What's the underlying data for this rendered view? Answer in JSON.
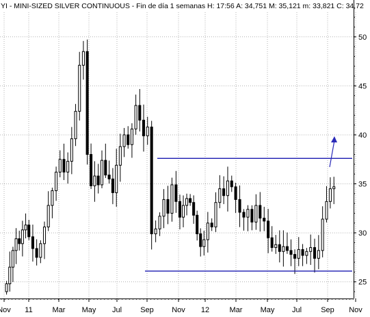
{
  "header": {
    "title": "YI - MINI-SIZED SILVER CONTINUOUS - Fin de día 1 semanas H: 17:56 A: 34,751 M: 35,121 m: 33,821 C: 34,72"
  },
  "colors": {
    "candle": "#000000",
    "trendline": "#1a1ab0",
    "arrow": "#2a2ab8",
    "grid": "#b0b0b0",
    "background": "#ffffff"
  },
  "chart_data": {
    "type": "candlestick",
    "title": "YI - MINI-SIZED SILVER CONTINUOUS - Fin de día 1 semanas H: 17:56 A: 34,751 M: 35,121 m: 33,821 C: 34,72",
    "ylim": [
      23.3,
      52.5
    ],
    "y_ticks": [
      "50",
      "45",
      "40",
      "35",
      "30",
      "25"
    ],
    "y_tick_values": [
      50,
      45,
      40,
      35,
      30,
      25
    ],
    "x_tick_labels": [
      "Nov",
      "11",
      "Mar",
      "May",
      "Jul",
      "Sep",
      "Nov",
      "12",
      "Mar",
      "May",
      "Jul",
      "Sep",
      "Nov"
    ],
    "x_tick_dates": [
      "2010-11",
      "2011-01",
      "2011-03",
      "2011-05",
      "2011-07",
      "2011-09",
      "2011-11",
      "2012-01",
      "2012-03",
      "2012-05",
      "2012-07",
      "2012-09",
      "2012-11"
    ],
    "grid": true,
    "close_series": [
      24.8,
      26.5,
      28.2,
      29.4,
      28.9,
      30.3,
      30.8,
      29.6,
      28.4,
      27.5,
      28.9,
      30.6,
      32.8,
      34.3,
      36.2,
      37.5,
      36.2,
      37.3,
      39.6,
      42.4,
      47.1,
      48.5,
      38.0,
      34.8,
      35.8,
      34.9,
      37.4,
      35.9,
      35.5,
      34.1,
      36.9,
      38.8,
      40.0,
      39.0,
      40.6,
      43.0,
      41.5,
      39.9,
      40.8,
      29.9,
      30.4,
      31.7,
      33.4,
      32.0,
      34.9,
      33.2,
      31.6,
      32.8,
      33.5,
      33.1,
      31.8,
      29.9,
      28.6,
      29.3,
      31.0,
      30.6,
      33.1,
      34.5,
      33.8,
      35.3,
      34.7,
      33.4,
      32.1,
      31.6,
      32.4,
      31.1,
      32.8,
      31.5,
      31.2,
      29.5,
      28.5,
      28.8,
      28.1,
      28.6,
      28.2,
      27.8,
      27.4,
      28.3,
      27.7,
      28.1,
      28.5,
      27.4,
      28.2,
      31.4,
      33.2,
      34.5,
      34.7
    ],
    "resistance_level": 37.6,
    "support_level": 26.1
  }
}
